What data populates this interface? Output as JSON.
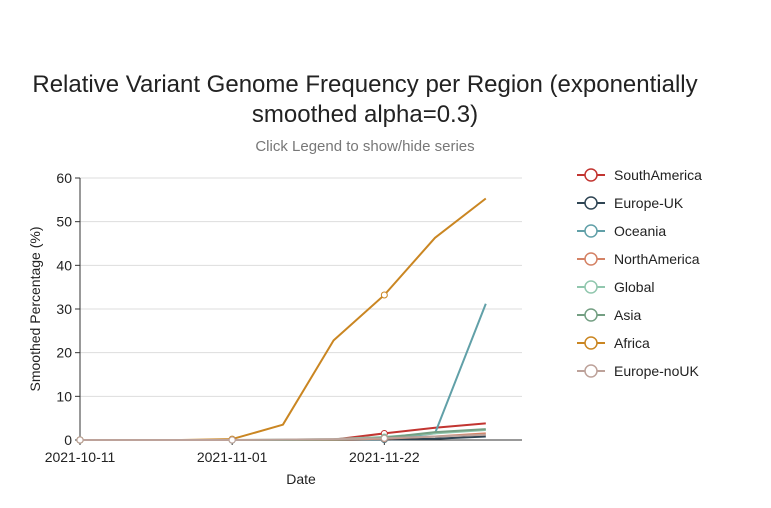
{
  "chart_data": {
    "type": "line",
    "title_line1": "Relative Variant Genome Frequency per Region (exponentially",
    "title_line2": "smoothed alpha=0.3)",
    "subtitle": "Click Legend to show/hide series",
    "xlabel": "Date",
    "ylabel": "Smoothed Percentage (%)",
    "ylim": [
      0,
      60
    ],
    "yticks": [
      0,
      10,
      20,
      30,
      40,
      50,
      60
    ],
    "xticks": [
      "2021-10-11",
      "2021-11-01",
      "2021-11-22"
    ],
    "x": [
      "2021-10-11",
      "2021-10-18",
      "2021-10-25",
      "2021-11-01",
      "2021-11-08",
      "2021-11-15",
      "2021-11-22",
      "2021-11-29",
      "2021-12-06"
    ],
    "x_range": [
      "2021-10-11",
      "2021-12-11"
    ],
    "grid": true,
    "legend_position": "right",
    "series": [
      {
        "name": "SouthAmerica",
        "color": "#c23531",
        "values": [
          0,
          0,
          0,
          0,
          0,
          0.1,
          1.5,
          2.8,
          3.8
        ]
      },
      {
        "name": "Europe-UK",
        "color": "#2f4554",
        "values": [
          0,
          0,
          0,
          0,
          0,
          0,
          0.1,
          0.3,
          0.8
        ]
      },
      {
        "name": "Oceania",
        "color": "#61a0a8",
        "values": [
          0,
          0,
          0,
          0,
          0,
          0,
          0.2,
          1.5,
          31.2
        ]
      },
      {
        "name": "NorthAmerica",
        "color": "#d48265",
        "values": [
          0,
          0,
          0,
          0,
          0,
          0,
          0.3,
          0.8,
          1.5
        ]
      },
      {
        "name": "Global",
        "color": "#91c7ae",
        "values": [
          0,
          0,
          0,
          0,
          0.1,
          0.2,
          0.7,
          1.5,
          2.3
        ]
      },
      {
        "name": "Asia",
        "color": "#749f83",
        "values": [
          0,
          0,
          0,
          0,
          0,
          0.1,
          0.5,
          1.8,
          2.5
        ]
      },
      {
        "name": "Africa",
        "color": "#ca8622",
        "values": [
          0,
          0,
          0,
          0.2,
          3.5,
          22.8,
          33.2,
          46.3,
          55.3
        ]
      },
      {
        "name": "Europe-noUK",
        "color": "#bda29a",
        "values": [
          0,
          0,
          0,
          0,
          0.1,
          0.2,
          0.4,
          0.8,
          1.2
        ]
      }
    ]
  }
}
